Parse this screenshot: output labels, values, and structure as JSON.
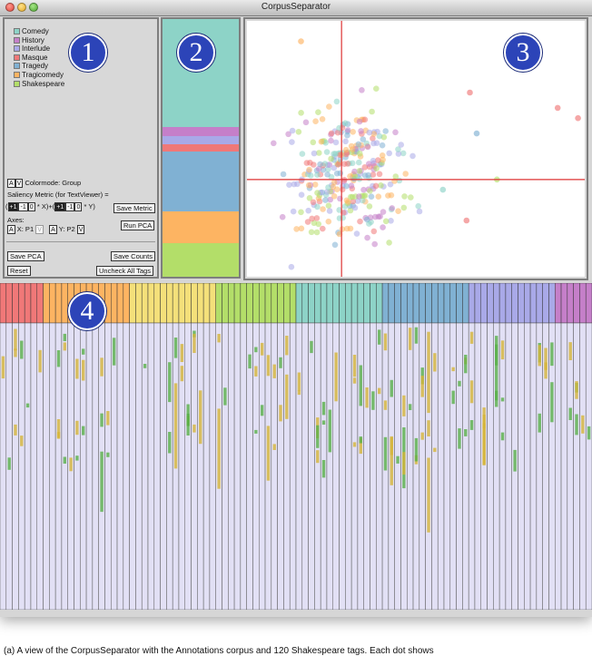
{
  "window": {
    "title": "CorpusSeparator"
  },
  "badges": [
    "1",
    "2",
    "3",
    "4"
  ],
  "legend": [
    {
      "label": "Comedy",
      "color": "#8dd3c7"
    },
    {
      "label": "History",
      "color": "#c57fc9"
    },
    {
      "label": "Interlude",
      "color": "#a9a9e8"
    },
    {
      "label": "Masque",
      "color": "#f07878"
    },
    {
      "label": "Tragedy",
      "color": "#80b1d3"
    },
    {
      "label": "Tragicomedy",
      "color": "#fdb462"
    },
    {
      "label": "Shakespeare",
      "color": "#b3de69"
    }
  ],
  "controls": {
    "colormode_a": "A",
    "colormode_v": "V",
    "colormode_label": "Colormode: Group",
    "saliency_label": "Saliency Metric (for TextViewer) =",
    "paren_open": "(",
    "x_plus1": "+1",
    "x_minus1": "-1",
    "x_zero": "0",
    "x_text": "* X)+(",
    "y_plus1": "+1",
    "y_minus1": "-1",
    "y_zero": "0",
    "y_text": "* Y)",
    "save_metric": "Save Metric",
    "run_pca": "Run PCA",
    "axes_label": "Axes:",
    "x_axis_a": "A",
    "x_axis_label": "X: P1",
    "x_axis_v": "V",
    "y_axis_a": "A",
    "y_axis_label": "Y: P2",
    "y_axis_v": "V",
    "save_pca": "Save PCA",
    "save_counts": "Save Counts",
    "reset": "Reset",
    "uncheck_all": "Uncheck All Tags"
  },
  "group_stack": [
    {
      "group": "Comedy",
      "fraction": 0.42,
      "color": "#8dd3c7"
    },
    {
      "group": "History",
      "fraction": 0.035,
      "color": "#c57fc9"
    },
    {
      "group": "Interlude",
      "fraction": 0.03,
      "color": "#a9a9e8"
    },
    {
      "group": "Masque",
      "fraction": 0.028,
      "color": "#f07878"
    },
    {
      "group": "Tragedy",
      "fraction": 0.235,
      "color": "#80b1d3"
    },
    {
      "group": "Tragicomedy",
      "fraction": 0.12,
      "color": "#fdb462"
    },
    {
      "group": "Shakespeare",
      "fraction": 0.132,
      "color": "#b3de69"
    }
  ],
  "scatter": {
    "crosshair": {
      "x": 0.28,
      "y": 0.62
    },
    "colors": [
      "#8dd3c7",
      "#80b1d3",
      "#fdb462",
      "#b3de69",
      "#f07878",
      "#c57fc9",
      "#a9a9e8"
    ]
  },
  "tag_columns": {
    "count": 96,
    "header_colors": [
      "#f07878",
      "#fdb462",
      "#f4e07a",
      "#b3de69",
      "#8dd3c7",
      "#80b1d3",
      "#a9a9e8",
      "#c57fc9"
    ]
  },
  "caption": "(a) A view of the CorpusSeparator with the Annotations corpus and 120 Shakespeare tags. Each dot shows"
}
